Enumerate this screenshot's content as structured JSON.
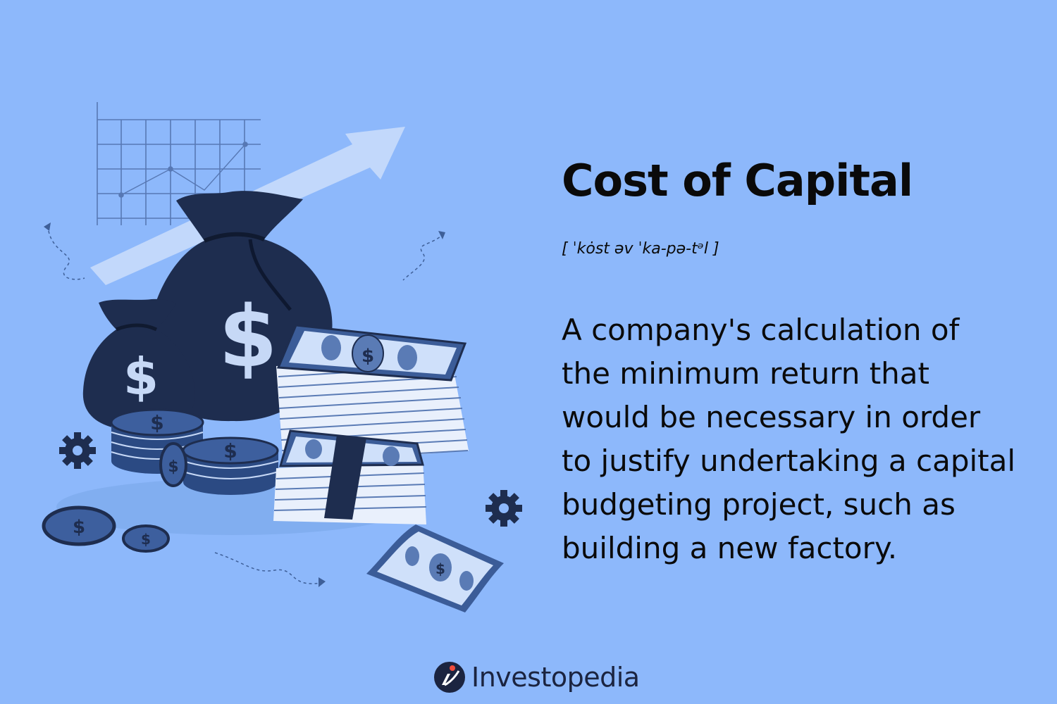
{
  "term": {
    "title": "Cost of Capital",
    "pronunciation": "[ ˈkȯst əv ˈka-pə-tᵊl ]",
    "definition_lines": [
      "A company's calculation of",
      "the minimum return that",
      "would be necessary in order",
      "to justify undertaking a capital",
      "budgeting project, such as",
      "building a new factory."
    ]
  },
  "brand": {
    "name": "Investopedia",
    "logo_icon": "investopedia-logo-icon"
  },
  "illustration": {
    "icons": [
      "growth-chart-icon",
      "trend-arrow-icon",
      "money-bag-icon",
      "dollar-sign-icon",
      "cash-stack-icon",
      "coin-icon",
      "gear-icon",
      "banknote-icon"
    ]
  },
  "colors": {
    "background": "#8db8fb",
    "navy": "#1e2d4f",
    "cash_light": "#dce8fb",
    "text": "#0a0a0a"
  }
}
